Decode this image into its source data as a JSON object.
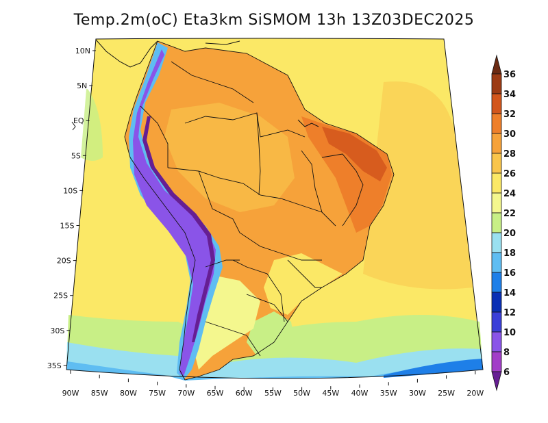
{
  "title": "Temp.2m(oC) Eta3km SiSMOM 13h 13Z03DEC2025",
  "latitude_labels": [
    "10N",
    "5N",
    "EQ",
    "5S",
    "10S",
    "15S",
    "20S",
    "25S",
    "30S",
    "35S"
  ],
  "longitude_labels": [
    "90W",
    "85W",
    "80W",
    "75W",
    "70W",
    "65W",
    "60W",
    "55W",
    "50W",
    "45W",
    "40W",
    "35W",
    "30W",
    "25W",
    "20W"
  ],
  "colorbar": {
    "labels": [
      "36",
      "34",
      "32",
      "30",
      "28",
      "26",
      "24",
      "22",
      "20",
      "18",
      "16",
      "14",
      "12",
      "10",
      "8",
      "6"
    ],
    "colors": [
      "#6b2a12",
      "#9c3b14",
      "#d2561c",
      "#ee7f2a",
      "#f6a23a",
      "#f9c54c",
      "#fbe866",
      "#f4f78e",
      "#c8ef86",
      "#9ae0f0",
      "#5fbdf2",
      "#1e7fe8",
      "#0a2fb4",
      "#3b3fd8",
      "#8a54e8",
      "#a23ec8",
      "#661e93"
    ]
  },
  "palette": {
    "ocean_warm": "#fbe866",
    "ocean_hot": "#f9c54c",
    "land_hot": "#f6a23a",
    "land_very_hot": "#ee7f2a",
    "south_cool": "#c8ef86",
    "south_cold": "#9ae0f0",
    "andes_cold": "#8a54e8",
    "andes_colder": "#661e93",
    "border": "#111111"
  }
}
